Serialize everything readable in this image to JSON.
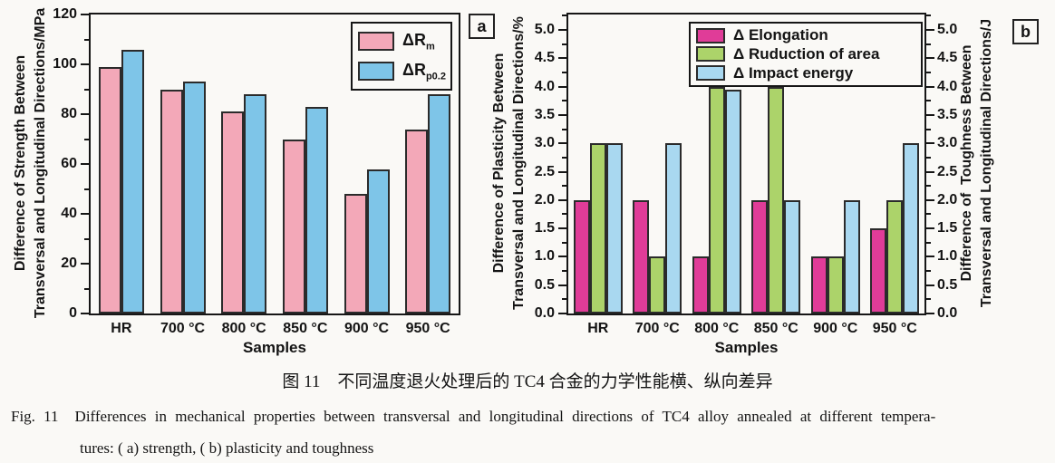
{
  "figure": {
    "caption": {
      "chinese": "图 11　不同温度退火处理后的 TC4 合金的力学性能横、纵向差异",
      "english_fig_label": "Fig. 11",
      "english_line1": "Differences in mechanical properties between transversal and longitudinal directions of TC4 alloy annealed at different tempera-",
      "english_line2": "tures: ( a)  strength, ( b)  plasticity and toughness"
    }
  },
  "chart_data": [
    {
      "type": "bar",
      "panel_label": "a",
      "title": "",
      "xlabel": "Samples",
      "ylabel_line1": "Difference of Strength Between",
      "ylabel_line2": "Transversal and Longitudinal Directions/MPa",
      "ylim": [
        0,
        120
      ],
      "ytick_values": [
        0,
        20,
        40,
        60,
        80,
        100,
        120
      ],
      "ytick_labels": [
        "0",
        "20",
        "40",
        "60",
        "80",
        "100",
        "120"
      ],
      "minor_tick_step": 10,
      "grid": false,
      "legend_position": "top-right",
      "categories": [
        "HR",
        "700 °C",
        "800 °C",
        "850 °C",
        "900 °C",
        "950 °C"
      ],
      "series": [
        {
          "name": "ΔRm",
          "legend_base": "ΔR",
          "legend_sub": "m",
          "color": "#F3A8B8",
          "values": [
            99,
            90,
            81,
            70,
            48,
            74
          ]
        },
        {
          "name": "ΔRp0.2",
          "legend_base": "ΔR",
          "legend_sub": "p0.2",
          "color": "#7EC5E8",
          "values": [
            106,
            93,
            88,
            83,
            58,
            88
          ]
        }
      ]
    },
    {
      "type": "bar",
      "panel_label": "b",
      "title": "",
      "xlabel": "Samples",
      "ylabel_line1": "Difference of Plasticity Between",
      "ylabel_line2": "Transversal and Longitudinal Directions/%",
      "ylabel_right_line1": "Difference of  Toughness Between",
      "ylabel_right_line2": "Transversal and Longitudinal Directions/J",
      "ylim": [
        0,
        5
      ],
      "ytick_values": [
        0,
        0.5,
        1,
        1.5,
        2,
        2.5,
        3,
        3.5,
        4,
        4.5,
        5
      ],
      "ytick_labels": [
        "0.0",
        "0.5",
        "1.0",
        "1.5",
        "2.0",
        "2.5",
        "3.0",
        "3.5",
        "4.0",
        "4.5",
        "5.0"
      ],
      "minor_tick_step": 0.25,
      "grid": false,
      "legend_position": "top-right",
      "categories": [
        "HR",
        "700 °C",
        "800 °C",
        "850 °C",
        "900 °C",
        "950 °C"
      ],
      "series": [
        {
          "name": "Δ Elongation",
          "color": "#E03C98",
          "values": [
            2.0,
            2.0,
            1.0,
            2.0,
            1.0,
            1.5
          ]
        },
        {
          "name": "Δ Ruduction of area",
          "color": "#ACD36A",
          "values": [
            3.0,
            1.0,
            4.0,
            4.0,
            1.0,
            2.0
          ]
        },
        {
          "name": "Δ Impact energy",
          "color": "#A9D8F0",
          "values": [
            3.0,
            3.0,
            3.95,
            2.0,
            2.0,
            3.0
          ]
        }
      ]
    }
  ]
}
